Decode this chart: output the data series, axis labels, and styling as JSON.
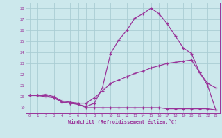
{
  "xlabel": "Windchill (Refroidissement éolien,°C)",
  "ylim": [
    18.5,
    28.5
  ],
  "xlim": [
    -0.5,
    23.5
  ],
  "yticks": [
    19,
    20,
    21,
    22,
    23,
    24,
    25,
    26,
    27,
    28
  ],
  "xticks": [
    0,
    1,
    2,
    3,
    4,
    5,
    6,
    7,
    8,
    9,
    10,
    11,
    12,
    13,
    14,
    15,
    16,
    17,
    18,
    19,
    20,
    21,
    22,
    23
  ],
  "background_color": "#cce8ec",
  "grid_color": "#aacdd4",
  "line_color": "#993399",
  "line1": [
    20.1,
    20.1,
    20.0,
    19.9,
    19.5,
    19.4,
    19.3,
    19.0,
    19.0,
    19.0,
    19.0,
    19.0,
    19.0,
    19.0,
    19.0,
    19.0,
    19.0,
    18.9,
    18.9,
    18.9,
    18.9,
    18.9,
    18.9,
    18.8
  ],
  "line2": [
    20.1,
    20.1,
    20.2,
    20.0,
    19.6,
    19.5,
    19.4,
    19.4,
    19.9,
    20.5,
    21.2,
    21.5,
    21.8,
    22.1,
    22.3,
    22.6,
    22.8,
    23.0,
    23.1,
    23.2,
    23.3,
    22.2,
    21.2,
    20.8
  ],
  "line3": [
    20.1,
    20.1,
    20.1,
    19.9,
    19.5,
    19.4,
    19.3,
    19.1,
    19.4,
    20.8,
    23.9,
    25.1,
    26.0,
    27.1,
    27.5,
    28.0,
    27.5,
    26.6,
    25.5,
    24.4,
    23.9,
    22.2,
    21.0,
    18.8
  ]
}
